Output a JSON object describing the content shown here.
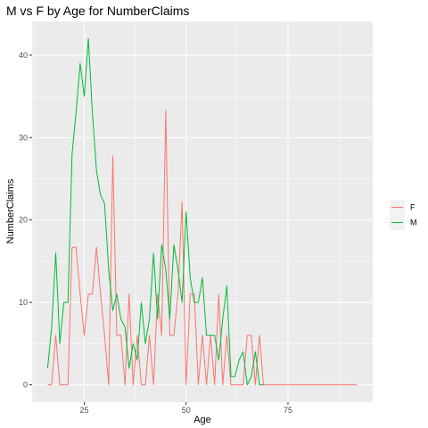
{
  "chart_data": {
    "type": "line",
    "title": "M vs F by Age for NumberClaims",
    "xlabel": "Age",
    "ylabel": "NumberClaims",
    "xlim": [
      12.2,
      95.8
    ],
    "ylim": [
      -2.1,
      44.1
    ],
    "x_ticks": [
      25,
      50,
      75
    ],
    "y_ticks": [
      0,
      10,
      20,
      30,
      40
    ],
    "grid": true,
    "legend_position": "right",
    "series": [
      {
        "name": "F",
        "color": "#f8766d",
        "x": [
          16,
          17,
          18,
          19,
          20,
          21,
          22,
          23,
          24,
          25,
          26,
          27,
          28,
          29,
          30,
          31,
          32,
          33,
          34,
          35,
          36,
          37,
          38,
          39,
          40,
          41,
          42,
          43,
          44,
          45,
          46,
          47,
          48,
          49,
          50,
          51,
          52,
          53,
          54,
          55,
          56,
          57,
          58,
          59,
          60,
          61,
          62,
          63,
          64,
          65,
          66,
          67,
          68,
          69,
          70,
          71,
          72,
          73,
          74,
          75,
          76,
          77,
          78,
          79,
          80,
          81,
          82,
          83,
          84,
          85,
          86,
          87,
          88,
          89,
          90,
          91,
          92
        ],
        "y": [
          0,
          0,
          6,
          0,
          0,
          0,
          16.7,
          16.7,
          11,
          6,
          11,
          11,
          16.7,
          11,
          6,
          0,
          27.8,
          6,
          6,
          0,
          11,
          0,
          6,
          0,
          0,
          6,
          0,
          11,
          6,
          33.3,
          6,
          6,
          11,
          22.2,
          0,
          11,
          11,
          0,
          6,
          0,
          6,
          0,
          11,
          0,
          6,
          0,
          0,
          0,
          0,
          6,
          6,
          0,
          6,
          0,
          0,
          0,
          0,
          0,
          0,
          0,
          0,
          0,
          0,
          0,
          0,
          0,
          0,
          0,
          0,
          0,
          0,
          0,
          0,
          0,
          0,
          0,
          0
        ]
      },
      {
        "name": "M",
        "color": "#00ba38",
        "x": [
          16,
          17,
          18,
          19,
          20,
          21,
          22,
          23,
          24,
          25,
          26,
          27,
          28,
          29,
          30,
          31,
          32,
          33,
          34,
          35,
          36,
          37,
          38,
          39,
          40,
          41,
          42,
          43,
          44,
          45,
          46,
          47,
          48,
          49,
          50,
          51,
          52,
          53,
          54,
          55,
          56,
          57,
          58,
          59,
          60,
          61,
          62,
          63,
          64,
          65,
          66,
          67,
          68,
          69
        ],
        "y": [
          2,
          7,
          16,
          5,
          10,
          10,
          28,
          33,
          39,
          35,
          42,
          33,
          26,
          23,
          22,
          14,
          9,
          11,
          8,
          7,
          2,
          5,
          3,
          10,
          5,
          8,
          16,
          8,
          17,
          14,
          8,
          17,
          14,
          10,
          21,
          13,
          10,
          10,
          13,
          6,
          6,
          6,
          3,
          8,
          12,
          1,
          1,
          3,
          4,
          0,
          1,
          4,
          0,
          0
        ]
      }
    ]
  }
}
